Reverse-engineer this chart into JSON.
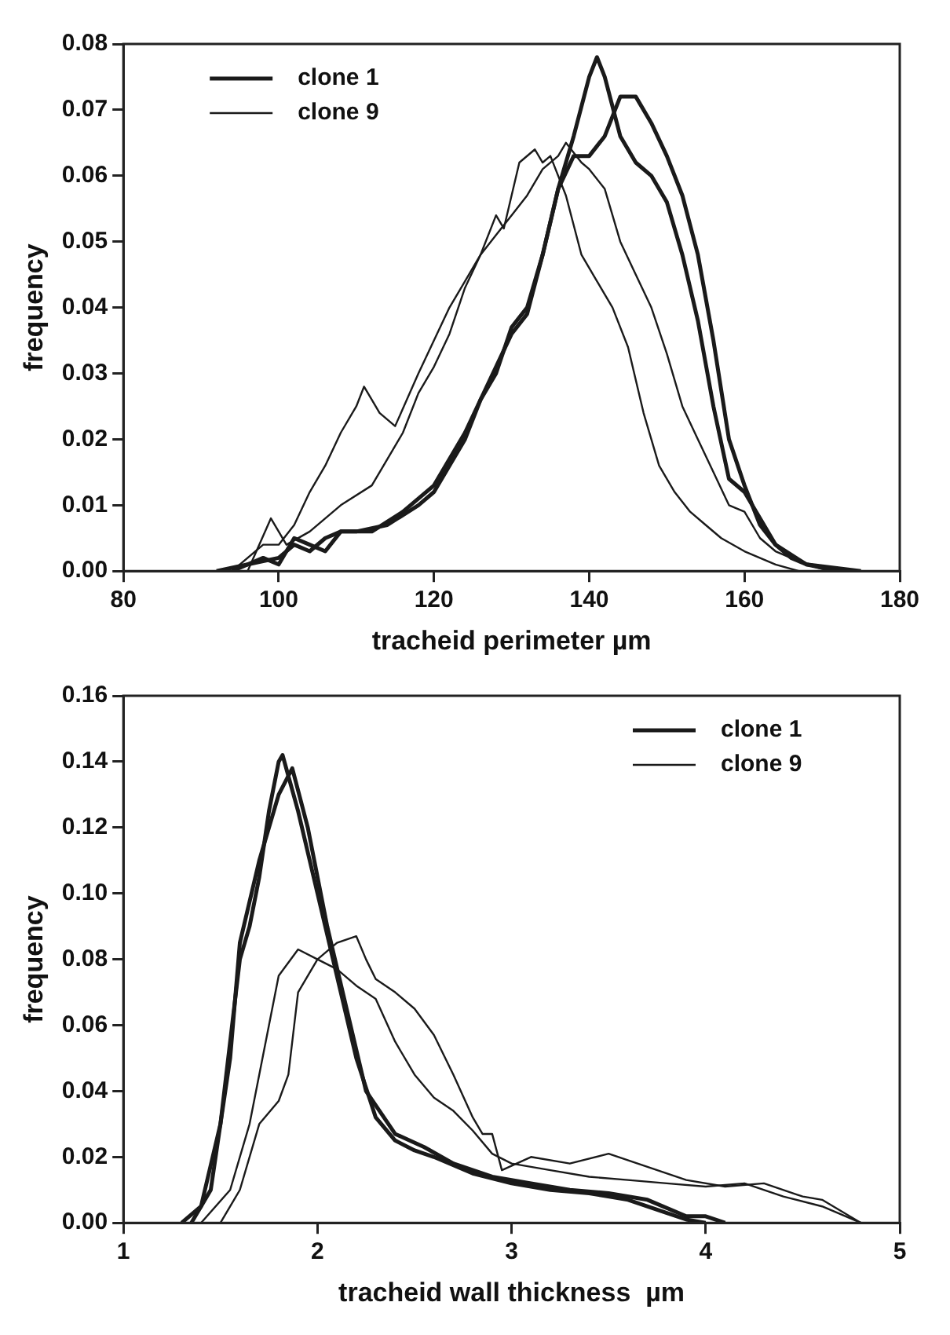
{
  "chart_data": [
    {
      "type": "line",
      "xlabel": "tracheid perimeter µm",
      "ylabel": "frequency",
      "xlim": [
        80,
        180
      ],
      "xticks": [
        80,
        100,
        120,
        140,
        160,
        180
      ],
      "ylim": [
        0,
        0.08
      ],
      "yticks": [
        {
          "value": 0,
          "label": "0.00"
        },
        {
          "value": 0.01,
          "label": "0.01"
        },
        {
          "value": 0.02,
          "label": "0.02"
        },
        {
          "value": 0.03,
          "label": "0.03"
        },
        {
          "value": 0.04,
          "label": "0.04"
        },
        {
          "value": 0.05,
          "label": "0.05"
        },
        {
          "value": 0.06,
          "label": "0.06"
        },
        {
          "value": 0.07,
          "label": "0.07"
        },
        {
          "value": 0.08,
          "label": "0.08"
        }
      ],
      "grid": false,
      "legend": "top left",
      "marker": "none",
      "line_style": "solid",
      "series": [
        {
          "name": "clone 1",
          "color": "#1a1a1a",
          "x": [
            92,
            96,
            100,
            102,
            104,
            106,
            108,
            110,
            114,
            118,
            120,
            122,
            124,
            126,
            128,
            130,
            132,
            134,
            136,
            138,
            140,
            141,
            142,
            144,
            146,
            148,
            150,
            152,
            154,
            156,
            158,
            160,
            162,
            164,
            166,
            168,
            172
          ],
          "values": [
            0,
            0.001,
            0.002,
            0.004,
            0.003,
            0.005,
            0.006,
            0.006,
            0.007,
            0.01,
            0.012,
            0.016,
            0.02,
            0.026,
            0.03,
            0.037,
            0.04,
            0.048,
            0.058,
            0.066,
            0.075,
            0.078,
            0.075,
            0.066,
            0.062,
            0.06,
            0.056,
            0.048,
            0.038,
            0.025,
            0.014,
            0.012,
            0.008,
            0.004,
            0.002,
            0.001,
            0
          ]
        },
        {
          "color": "#1a1a1a",
          "x": [
            94,
            98,
            100,
            102,
            104,
            106,
            108,
            112,
            116,
            120,
            124,
            128,
            130,
            132,
            134,
            136,
            138,
            140,
            142,
            144,
            146,
            148,
            150,
            152,
            154,
            156,
            158,
            160,
            162,
            164,
            168,
            175
          ],
          "values": [
            0,
            0.002,
            0.001,
            0.005,
            0.004,
            0.003,
            0.006,
            0.006,
            0.009,
            0.013,
            0.021,
            0.031,
            0.036,
            0.039,
            0.048,
            0.058,
            0.063,
            0.063,
            0.066,
            0.072,
            0.072,
            0.068,
            0.063,
            0.057,
            0.048,
            0.035,
            0.02,
            0.013,
            0.007,
            0.004,
            0.001,
            0
          ]
        },
        {
          "name": "clone 9",
          "color": "#1a1a1a",
          "x": [
            94,
            98,
            100,
            102,
            104,
            106,
            108,
            110,
            111,
            113,
            115,
            118,
            120,
            122,
            124,
            126,
            128,
            129,
            131,
            133,
            134,
            135,
            137,
            139,
            141,
            143,
            145,
            147,
            149,
            151,
            153,
            155,
            157,
            160,
            164,
            167
          ],
          "values": [
            0,
            0.004,
            0.004,
            0.007,
            0.012,
            0.016,
            0.021,
            0.025,
            0.028,
            0.024,
            0.022,
            0.03,
            0.035,
            0.04,
            0.044,
            0.048,
            0.054,
            0.052,
            0.062,
            0.064,
            0.062,
            0.063,
            0.057,
            0.048,
            0.044,
            0.04,
            0.034,
            0.024,
            0.016,
            0.012,
            0.009,
            0.007,
            0.005,
            0.003,
            0.001,
            0
          ]
        },
        {
          "color": "#1a1a1a",
          "x": [
            96,
            99,
            101,
            104,
            108,
            112,
            114,
            116,
            118,
            120,
            122,
            124,
            126,
            128,
            130,
            132,
            134,
            136,
            137,
            139,
            140,
            142,
            144,
            146,
            148,
            150,
            152,
            154,
            156,
            158,
            160,
            162,
            164,
            168,
            171
          ],
          "values": [
            0,
            0.008,
            0.004,
            0.006,
            0.01,
            0.013,
            0.017,
            0.021,
            0.027,
            0.031,
            0.036,
            0.043,
            0.048,
            0.051,
            0.054,
            0.057,
            0.061,
            0.063,
            0.065,
            0.062,
            0.061,
            0.058,
            0.05,
            0.045,
            0.04,
            0.033,
            0.025,
            0.02,
            0.015,
            0.01,
            0.009,
            0.005,
            0.003,
            0.001,
            0
          ]
        }
      ]
    },
    {
      "type": "line",
      "xlabel": "tracheid wall thickness  µm",
      "ylabel": "frequency",
      "xlim": [
        1,
        5
      ],
      "xticks": [
        1,
        2,
        3,
        4,
        5
      ],
      "ylim": [
        0,
        0.16
      ],
      "yticks": [
        {
          "value": 0,
          "label": "0.00"
        },
        {
          "value": 0.02,
          "label": "0.02"
        },
        {
          "value": 0.04,
          "label": "0.04"
        },
        {
          "value": 0.06,
          "label": "0.06"
        },
        {
          "value": 0.08,
          "label": "0.08"
        },
        {
          "value": 0.1,
          "label": "0.10"
        },
        {
          "value": 0.12,
          "label": "0.12"
        },
        {
          "value": 0.14,
          "label": "0.14"
        },
        {
          "value": 0.16,
          "label": "0.16"
        }
      ],
      "grid": false,
      "legend": "top right",
      "marker": "none",
      "line_style": "solid",
      "series": [
        {
          "name": "clone 1",
          "color": "#1a1a1a",
          "x": [
            1.3,
            1.4,
            1.5,
            1.55,
            1.6,
            1.65,
            1.7,
            1.75,
            1.8,
            1.82,
            1.9,
            2.0,
            2.1,
            2.2,
            2.3,
            2.4,
            2.5,
            2.6,
            2.8,
            3.0,
            3.2,
            3.4,
            3.6,
            3.8,
            3.9,
            4.0
          ],
          "values": [
            0,
            0.005,
            0.03,
            0.055,
            0.08,
            0.09,
            0.105,
            0.125,
            0.14,
            0.142,
            0.125,
            0.1,
            0.075,
            0.05,
            0.032,
            0.025,
            0.022,
            0.02,
            0.015,
            0.012,
            0.01,
            0.009,
            0.007,
            0.003,
            0.001,
            0
          ]
        },
        {
          "color": "#1a1a1a",
          "x": [
            1.35,
            1.45,
            1.55,
            1.6,
            1.7,
            1.8,
            1.87,
            1.95,
            2.05,
            2.15,
            2.25,
            2.4,
            2.55,
            2.7,
            2.9,
            3.1,
            3.3,
            3.5,
            3.7,
            3.9,
            4.0,
            4.1
          ],
          "values": [
            0,
            0.01,
            0.05,
            0.085,
            0.11,
            0.13,
            0.138,
            0.12,
            0.09,
            0.065,
            0.04,
            0.027,
            0.023,
            0.018,
            0.014,
            0.012,
            0.01,
            0.009,
            0.007,
            0.002,
            0.002,
            0
          ]
        },
        {
          "name": "clone 9",
          "color": "#1a1a1a",
          "x": [
            1.4,
            1.55,
            1.65,
            1.75,
            1.8,
            1.9,
            2.0,
            2.1,
            2.2,
            2.3,
            2.4,
            2.5,
            2.6,
            2.7,
            2.8,
            2.9,
            3.0,
            3.2,
            3.4,
            3.6,
            3.8,
            4.0,
            4.2,
            4.4,
            4.6,
            4.8
          ],
          "values": [
            0,
            0.01,
            0.03,
            0.06,
            0.075,
            0.083,
            0.08,
            0.077,
            0.072,
            0.068,
            0.055,
            0.045,
            0.038,
            0.034,
            0.028,
            0.021,
            0.018,
            0.016,
            0.014,
            0.013,
            0.012,
            0.011,
            0.012,
            0.008,
            0.005,
            0
          ]
        },
        {
          "color": "#1a1a1a",
          "x": [
            1.5,
            1.6,
            1.7,
            1.8,
            1.85,
            1.9,
            2.0,
            2.1,
            2.2,
            2.25,
            2.3,
            2.4,
            2.5,
            2.6,
            2.7,
            2.8,
            2.85,
            2.9,
            2.95,
            3.1,
            3.3,
            3.5,
            3.7,
            3.9,
            4.1,
            4.3,
            4.5,
            4.6,
            4.8
          ],
          "values": [
            0,
            0.01,
            0.03,
            0.037,
            0.045,
            0.07,
            0.08,
            0.085,
            0.087,
            0.08,
            0.074,
            0.07,
            0.065,
            0.057,
            0.045,
            0.032,
            0.027,
            0.027,
            0.016,
            0.02,
            0.018,
            0.021,
            0.017,
            0.013,
            0.011,
            0.012,
            0.008,
            0.007,
            0
          ]
        }
      ]
    }
  ]
}
